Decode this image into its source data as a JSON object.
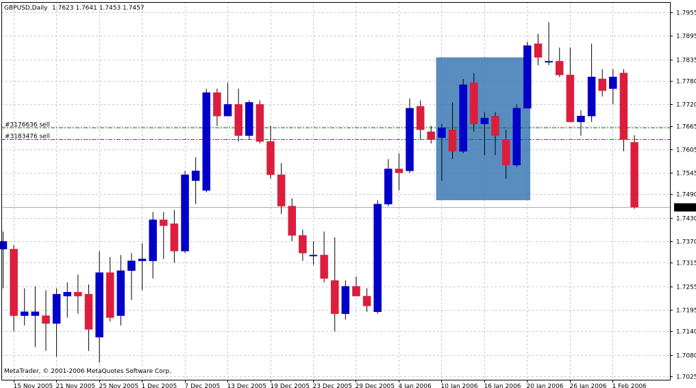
{
  "header": {
    "symbol": "GBPUSD,Daily",
    "ohlc": "1.7623 1.7641 1.7453 1.7457"
  },
  "footer": {
    "copyright": "MetaTrader, © 2001-2006 MetaQuotes Software Corp."
  },
  "orders": [
    {
      "label": "#3176636 sell",
      "price": 1.7661
    },
    {
      "label": "#3183476 sell",
      "price": 1.7631
    }
  ],
  "colors": {
    "bull": "#0000c8",
    "bear": "#dc1e3c",
    "order_line": "#008000",
    "grid": "#c8c8c8",
    "selection": "#3c78b4",
    "price_tag_bg": "#000000"
  },
  "chart_data": {
    "type": "candlestick",
    "price_scale": [
      "1.7955",
      "1.7895",
      "1.7835",
      "1.7780",
      "1.7720",
      "1.7665",
      "1.7605",
      "1.7545",
      "1.7490",
      "1.7430",
      "1.7370",
      "1.7315",
      "1.7255",
      "1.7195",
      "1.7140",
      "1.7080",
      "1.7025"
    ],
    "date_labels": [
      "15 Nov 2005",
      "21 Nov 2005",
      "25 Nov 2005",
      "1 Dec 2005",
      "7 Dec 2005",
      "13 Dec 2005",
      "19 Dec 2005",
      "23 Dec 2005",
      "29 Dec 2005",
      "4 Jan 2006",
      "10 Jan 2006",
      "16 Jan 2006",
      "20 Jan 2006",
      "26 Jan 2006",
      "1 Feb 2006"
    ],
    "current_price": "1.7457",
    "ylim": [
      1.7025,
      1.7955
    ],
    "grid": true,
    "candles": [
      {
        "o": 1.735,
        "h": 1.7395,
        "l": 1.725,
        "c": 1.737
      },
      {
        "o": 1.735,
        "h": 1.736,
        "l": 1.714,
        "c": 1.718
      },
      {
        "o": 1.718,
        "h": 1.725,
        "l": 1.7155,
        "c": 1.719
      },
      {
        "o": 1.718,
        "h": 1.7255,
        "l": 1.71,
        "c": 1.719
      },
      {
        "o": 1.718,
        "h": 1.7245,
        "l": 1.709,
        "c": 1.716
      },
      {
        "o": 1.716,
        "h": 1.725,
        "l": 1.7075,
        "c": 1.7235
      },
      {
        "o": 1.723,
        "h": 1.7265,
        "l": 1.7175,
        "c": 1.724
      },
      {
        "o": 1.724,
        "h": 1.7285,
        "l": 1.7185,
        "c": 1.723
      },
      {
        "o": 1.7235,
        "h": 1.726,
        "l": 1.709,
        "c": 1.7145
      },
      {
        "o": 1.7125,
        "h": 1.7345,
        "l": 1.706,
        "c": 1.729
      },
      {
        "o": 1.729,
        "h": 1.733,
        "l": 1.7165,
        "c": 1.7175
      },
      {
        "o": 1.718,
        "h": 1.7335,
        "l": 1.7155,
        "c": 1.7295
      },
      {
        "o": 1.7295,
        "h": 1.734,
        "l": 1.722,
        "c": 1.732
      },
      {
        "o": 1.732,
        "h": 1.7365,
        "l": 1.7245,
        "c": 1.7325
      },
      {
        "o": 1.732,
        "h": 1.7445,
        "l": 1.7275,
        "c": 1.7425
      },
      {
        "o": 1.7425,
        "h": 1.7445,
        "l": 1.7325,
        "c": 1.741
      },
      {
        "o": 1.7415,
        "h": 1.745,
        "l": 1.7315,
        "c": 1.7345
      },
      {
        "o": 1.7345,
        "h": 1.755,
        "l": 1.734,
        "c": 1.754
      },
      {
        "o": 1.7525,
        "h": 1.7585,
        "l": 1.7465,
        "c": 1.755
      },
      {
        "o": 1.75,
        "h": 1.776,
        "l": 1.7495,
        "c": 1.775
      },
      {
        "o": 1.775,
        "h": 1.776,
        "l": 1.7665,
        "c": 1.769
      },
      {
        "o": 1.769,
        "h": 1.7775,
        "l": 1.769,
        "c": 1.772
      },
      {
        "o": 1.772,
        "h": 1.776,
        "l": 1.7625,
        "c": 1.764
      },
      {
        "o": 1.764,
        "h": 1.773,
        "l": 1.763,
        "c": 1.7725
      },
      {
        "o": 1.772,
        "h": 1.773,
        "l": 1.762,
        "c": 1.7625
      },
      {
        "o": 1.7625,
        "h": 1.7665,
        "l": 1.753,
        "c": 1.754
      },
      {
        "o": 1.754,
        "h": 1.757,
        "l": 1.744,
        "c": 1.746
      },
      {
        "o": 1.746,
        "h": 1.748,
        "l": 1.737,
        "c": 1.7385
      },
      {
        "o": 1.7385,
        "h": 1.74,
        "l": 1.732,
        "c": 1.734
      },
      {
        "o": 1.7335,
        "h": 1.737,
        "l": 1.731,
        "c": 1.7335
      },
      {
        "o": 1.7335,
        "h": 1.7395,
        "l": 1.7265,
        "c": 1.7275
      },
      {
        "o": 1.727,
        "h": 1.738,
        "l": 1.714,
        "c": 1.7185
      },
      {
        "o": 1.7185,
        "h": 1.727,
        "l": 1.717,
        "c": 1.7255
      },
      {
        "o": 1.7255,
        "h": 1.728,
        "l": 1.723,
        "c": 1.723
      },
      {
        "o": 1.723,
        "h": 1.725,
        "l": 1.719,
        "c": 1.7205
      },
      {
        "o": 1.719,
        "h": 1.7475,
        "l": 1.7185,
        "c": 1.7465
      },
      {
        "o": 1.7465,
        "h": 1.758,
        "l": 1.746,
        "c": 1.7555
      },
      {
        "o": 1.7555,
        "h": 1.7595,
        "l": 1.75,
        "c": 1.7545
      },
      {
        "o": 1.755,
        "h": 1.7735,
        "l": 1.7545,
        "c": 1.771
      },
      {
        "o": 1.7715,
        "h": 1.773,
        "l": 1.763,
        "c": 1.7655
      },
      {
        "o": 1.765,
        "h": 1.7665,
        "l": 1.762,
        "c": 1.763
      },
      {
        "o": 1.7635,
        "h": 1.767,
        "l": 1.7525,
        "c": 1.766
      },
      {
        "o": 1.7655,
        "h": 1.7725,
        "l": 1.758,
        "c": 1.76
      },
      {
        "o": 1.76,
        "h": 1.7785,
        "l": 1.7595,
        "c": 1.777
      },
      {
        "o": 1.7775,
        "h": 1.78,
        "l": 1.765,
        "c": 1.767
      },
      {
        "o": 1.767,
        "h": 1.77,
        "l": 1.759,
        "c": 1.7685
      },
      {
        "o": 1.769,
        "h": 1.77,
        "l": 1.759,
        "c": 1.764
      },
      {
        "o": 1.763,
        "h": 1.7655,
        "l": 1.753,
        "c": 1.7565
      },
      {
        "o": 1.7565,
        "h": 1.772,
        "l": 1.756,
        "c": 1.771
      },
      {
        "o": 1.771,
        "h": 1.788,
        "l": 1.771,
        "c": 1.787
      },
      {
        "o": 1.7875,
        "h": 1.79,
        "l": 1.782,
        "c": 1.784
      },
      {
        "o": 1.783,
        "h": 1.793,
        "l": 1.782,
        "c": 1.783
      },
      {
        "o": 1.783,
        "h": 1.7865,
        "l": 1.779,
        "c": 1.7795
      },
      {
        "o": 1.7795,
        "h": 1.7865,
        "l": 1.7675,
        "c": 1.7675
      },
      {
        "o": 1.7675,
        "h": 1.7705,
        "l": 1.764,
        "c": 1.769
      },
      {
        "o": 1.769,
        "h": 1.7875,
        "l": 1.7675,
        "c": 1.779
      },
      {
        "o": 1.7785,
        "h": 1.781,
        "l": 1.774,
        "c": 1.7755
      },
      {
        "o": 1.776,
        "h": 1.781,
        "l": 1.772,
        "c": 1.779
      },
      {
        "o": 1.78,
        "h": 1.781,
        "l": 1.76,
        "c": 1.763
      },
      {
        "o": 1.7623,
        "h": 1.7641,
        "l": 1.7453,
        "c": 1.7457
      }
    ]
  }
}
